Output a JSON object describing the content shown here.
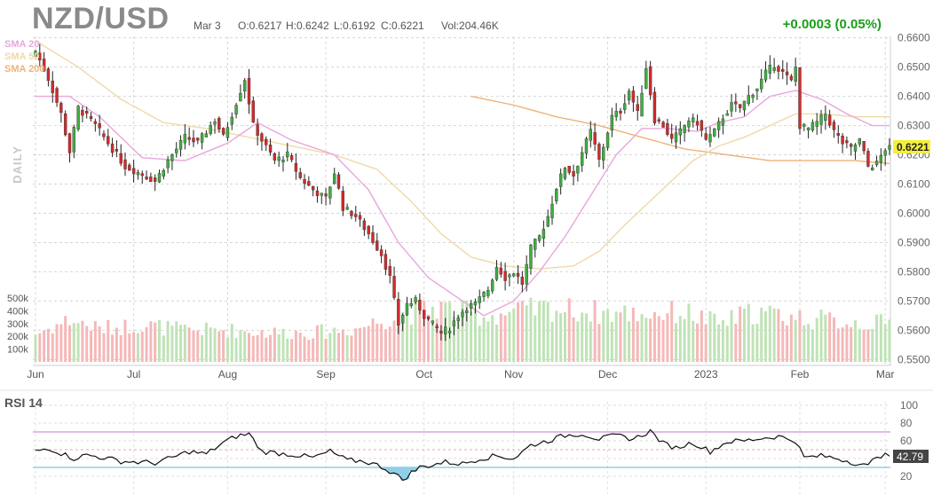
{
  "header": {
    "symbol": "NZD/USD",
    "date": "Mar 3",
    "open": "O:0.6217",
    "high": "H:0.6242",
    "low": "L:0.6192",
    "close": "C:0.6221",
    "volume": "Vol:204.46K",
    "change": "+0.0003 (0.05%)"
  },
  "labels": {
    "sma1": "SMA 20",
    "sma2": "SMA 50",
    "sma3": "SMA 200",
    "timeframe": "DAILY",
    "rsi_title": "RSI 14",
    "last_price": "0.6221",
    "last_rsi": "42.79"
  },
  "colors": {
    "up": "#3fae3f",
    "down": "#d12b2b",
    "vol_up": "#bfe3b6",
    "vol_down": "#f5b8b8",
    "sma20": "#e8a6dc",
    "sma50": "#efd9a7",
    "sma200": "#efb277",
    "rsi_line": "#111111",
    "rsi_upper": "#d9a3e0",
    "rsi_lower": "#8fcfe8"
  },
  "chart_data": {
    "type": "candlestick",
    "price_axis": {
      "ticks": [
        "0.6600",
        "0.6500",
        "0.6400",
        "0.6300",
        "0.6200",
        "0.6100",
        "0.6000",
        "0.5900",
        "0.5800",
        "0.5700",
        "0.5600",
        "0.5500"
      ],
      "ylim": [
        0.5495,
        0.6605
      ]
    },
    "volume_axis": {
      "ticks": [
        "500k",
        "400k",
        "300k",
        "200k",
        "100k"
      ],
      "max": 500000
    },
    "x_labels": [
      "Jun",
      "Jul",
      "Aug",
      "Sep",
      "Oct",
      "Nov",
      "Dec",
      "2023",
      "Feb",
      "Mar"
    ],
    "x_label_index": [
      0,
      23,
      45,
      68,
      91,
      112,
      134,
      157,
      179,
      199
    ],
    "close_anchors": [
      [
        0,
        0.6555
      ],
      [
        3,
        0.646
      ],
      [
        6,
        0.634
      ],
      [
        8,
        0.621
      ],
      [
        10,
        0.636
      ],
      [
        14,
        0.63
      ],
      [
        17,
        0.624
      ],
      [
        21,
        0.616
      ],
      [
        24,
        0.614
      ],
      [
        28,
        0.611
      ],
      [
        31,
        0.618
      ],
      [
        35,
        0.626
      ],
      [
        38,
        0.624
      ],
      [
        42,
        0.632
      ],
      [
        44,
        0.626
      ],
      [
        47,
        0.638
      ],
      [
        49,
        0.646
      ],
      [
        51,
        0.63
      ],
      [
        53,
        0.625
      ],
      [
        56,
        0.618
      ],
      [
        59,
        0.62
      ],
      [
        62,
        0.612
      ],
      [
        65,
        0.608
      ],
      [
        68,
        0.605
      ],
      [
        70,
        0.614
      ],
      [
        72,
        0.602
      ],
      [
        75,
        0.599
      ],
      [
        78,
        0.593
      ],
      [
        81,
        0.586
      ],
      [
        83,
        0.578
      ],
      [
        85,
        0.562
      ],
      [
        87,
        0.569
      ],
      [
        89,
        0.57
      ],
      [
        91,
        0.565
      ],
      [
        93,
        0.562
      ],
      [
        95,
        0.559
      ],
      [
        97,
        0.561
      ],
      [
        99,
        0.565
      ],
      [
        101,
        0.568
      ],
      [
        103,
        0.569
      ],
      [
        106,
        0.574
      ],
      [
        108,
        0.582
      ],
      [
        110,
        0.578
      ],
      [
        112,
        0.58
      ],
      [
        114,
        0.576
      ],
      [
        116,
        0.588
      ],
      [
        118,
        0.592
      ],
      [
        120,
        0.599
      ],
      [
        122,
        0.609
      ],
      [
        124,
        0.616
      ],
      [
        126,
        0.613
      ],
      [
        128,
        0.621
      ],
      [
        130,
        0.628
      ],
      [
        132,
        0.618
      ],
      [
        135,
        0.633
      ],
      [
        137,
        0.635
      ],
      [
        139,
        0.642
      ],
      [
        141,
        0.634
      ],
      [
        143,
        0.65
      ],
      [
        145,
        0.632
      ],
      [
        147,
        0.63
      ],
      [
        149,
        0.625
      ],
      [
        151,
        0.628
      ],
      [
        153,
        0.632
      ],
      [
        155,
        0.631
      ],
      [
        157,
        0.625
      ],
      [
        159,
        0.628
      ],
      [
        161,
        0.633
      ],
      [
        163,
        0.637
      ],
      [
        165,
        0.636
      ],
      [
        167,
        0.64
      ],
      [
        169,
        0.643
      ],
      [
        171,
        0.648
      ],
      [
        173,
        0.651
      ],
      [
        175,
        0.648
      ],
      [
        177,
        0.645
      ],
      [
        178,
        0.65
      ],
      [
        179,
        0.63
      ],
      [
        181,
        0.629
      ],
      [
        183,
        0.631
      ],
      [
        185,
        0.634
      ],
      [
        187,
        0.628
      ],
      [
        189,
        0.624
      ],
      [
        191,
        0.622
      ],
      [
        193,
        0.625
      ],
      [
        195,
        0.616
      ],
      [
        197,
        0.617
      ],
      [
        199,
        0.6221
      ]
    ],
    "sma20_anchors": [
      [
        0,
        0.64
      ],
      [
        8,
        0.64
      ],
      [
        15,
        0.633
      ],
      [
        25,
        0.619
      ],
      [
        35,
        0.618
      ],
      [
        45,
        0.624
      ],
      [
        52,
        0.631
      ],
      [
        60,
        0.625
      ],
      [
        70,
        0.62
      ],
      [
        78,
        0.608
      ],
      [
        85,
        0.59
      ],
      [
        92,
        0.578
      ],
      [
        98,
        0.572
      ],
      [
        105,
        0.565
      ],
      [
        112,
        0.57
      ],
      [
        118,
        0.58
      ],
      [
        124,
        0.592
      ],
      [
        130,
        0.606
      ],
      [
        136,
        0.62
      ],
      [
        142,
        0.629
      ],
      [
        148,
        0.629
      ],
      [
        155,
        0.628
      ],
      [
        160,
        0.631
      ],
      [
        166,
        0.633
      ],
      [
        172,
        0.64
      ],
      [
        178,
        0.642
      ],
      [
        184,
        0.639
      ],
      [
        190,
        0.634
      ],
      [
        196,
        0.63
      ],
      [
        200,
        0.63
      ]
    ],
    "sma50_anchors": [
      [
        0,
        0.659
      ],
      [
        10,
        0.65
      ],
      [
        20,
        0.639
      ],
      [
        30,
        0.631
      ],
      [
        40,
        0.629
      ],
      [
        50,
        0.626
      ],
      [
        60,
        0.623
      ],
      [
        70,
        0.62
      ],
      [
        80,
        0.615
      ],
      [
        88,
        0.604
      ],
      [
        95,
        0.593
      ],
      [
        102,
        0.585
      ],
      [
        110,
        0.582
      ],
      [
        118,
        0.581
      ],
      [
        126,
        0.582
      ],
      [
        132,
        0.587
      ],
      [
        138,
        0.596
      ],
      [
        146,
        0.607
      ],
      [
        154,
        0.618
      ],
      [
        160,
        0.623
      ],
      [
        166,
        0.626
      ],
      [
        172,
        0.63
      ],
      [
        178,
        0.634
      ],
      [
        184,
        0.634
      ],
      [
        192,
        0.633
      ],
      [
        200,
        0.633
      ]
    ],
    "sma200_anchors": [
      [
        102,
        0.64
      ],
      [
        112,
        0.637
      ],
      [
        122,
        0.633
      ],
      [
        132,
        0.63
      ],
      [
        142,
        0.626
      ],
      [
        152,
        0.622
      ],
      [
        162,
        0.62
      ],
      [
        172,
        0.618
      ],
      [
        182,
        0.618
      ],
      [
        192,
        0.618
      ],
      [
        200,
        0.617
      ]
    ],
    "volume_anchors": [
      [
        0,
        220000
      ],
      [
        8,
        330000
      ],
      [
        15,
        260000
      ],
      [
        25,
        290000
      ],
      [
        35,
        250000
      ],
      [
        45,
        250000
      ],
      [
        55,
        230000
      ],
      [
        65,
        230000
      ],
      [
        75,
        260000
      ],
      [
        85,
        370000
      ],
      [
        95,
        430000
      ],
      [
        105,
        360000
      ],
      [
        112,
        390000
      ],
      [
        120,
        420000
      ],
      [
        128,
        400000
      ],
      [
        136,
        380000
      ],
      [
        144,
        380000
      ],
      [
        152,
        390000
      ],
      [
        160,
        300000
      ],
      [
        168,
        390000
      ],
      [
        176,
        360000
      ],
      [
        184,
        330000
      ],
      [
        192,
        310000
      ],
      [
        200,
        300000
      ]
    ],
    "rsi": {
      "ticks": [
        "100",
        "80",
        "60",
        "40",
        "20"
      ],
      "ylim": [
        0,
        100
      ],
      "overbought": 70,
      "oversold": 30,
      "anchors": [
        [
          0,
          48
        ],
        [
          3,
          52
        ],
        [
          6,
          46
        ],
        [
          9,
          40
        ],
        [
          12,
          44
        ],
        [
          16,
          41
        ],
        [
          20,
          37
        ],
        [
          24,
          36
        ],
        [
          28,
          35
        ],
        [
          32,
          41
        ],
        [
          36,
          48
        ],
        [
          40,
          45
        ],
        [
          44,
          58
        ],
        [
          47,
          65
        ],
        [
          50,
          68
        ],
        [
          53,
          48
        ],
        [
          57,
          46
        ],
        [
          61,
          44
        ],
        [
          65,
          41
        ],
        [
          69,
          48
        ],
        [
          73,
          38
        ],
        [
          77,
          37
        ],
        [
          81,
          31
        ],
        [
          84,
          23
        ],
        [
          86,
          16
        ],
        [
          88,
          24
        ],
        [
          90,
          30
        ],
        [
          93,
          33
        ],
        [
          96,
          36
        ],
        [
          100,
          34
        ],
        [
          104,
          40
        ],
        [
          108,
          43
        ],
        [
          112,
          40
        ],
        [
          116,
          55
        ],
        [
          120,
          60
        ],
        [
          124,
          66
        ],
        [
          128,
          68
        ],
        [
          132,
          62
        ],
        [
          136,
          66
        ],
        [
          140,
          62
        ],
        [
          144,
          71
        ],
        [
          147,
          57
        ],
        [
          150,
          52
        ],
        [
          154,
          58
        ],
        [
          158,
          48
        ],
        [
          162,
          59
        ],
        [
          166,
          60
        ],
        [
          170,
          63
        ],
        [
          174,
          65
        ],
        [
          178,
          60
        ],
        [
          180,
          41
        ],
        [
          184,
          43
        ],
        [
          188,
          40
        ],
        [
          192,
          35
        ],
        [
          195,
          31
        ],
        [
          197,
          44
        ],
        [
          200,
          42.8
        ]
      ]
    }
  }
}
